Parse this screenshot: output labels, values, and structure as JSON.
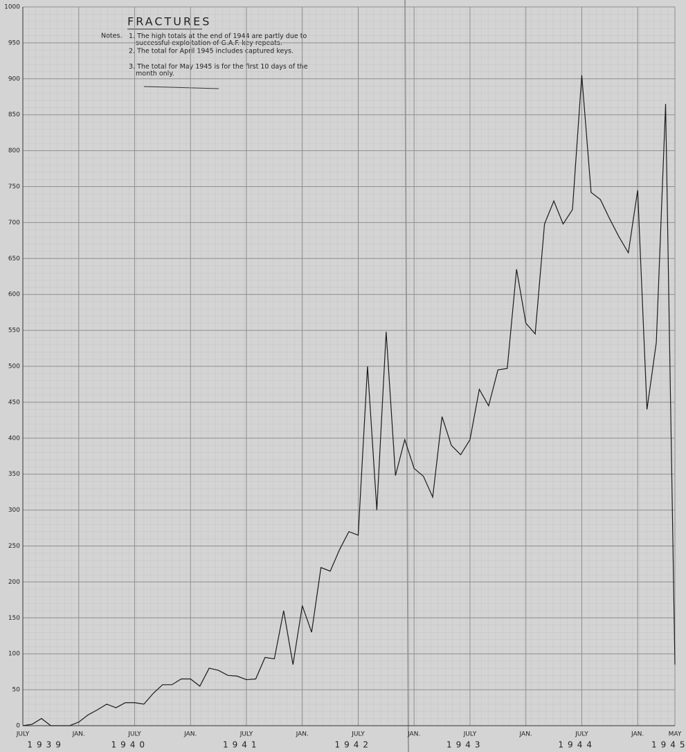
{
  "chart_data": {
    "type": "line",
    "title": "FRACTURES",
    "notes_heading": "Notes.",
    "notes": [
      "1. The high totals at the end of 1944 are partly due to successful exploitation of G.A.F. key repeats.",
      "2. The total for April 1945 includes captured keys.",
      "3. The total for May 1945 is for the first 10 days of the month only."
    ],
    "categories": [
      "JULY",
      null,
      null,
      null,
      null,
      null,
      "JAN.",
      null,
      null,
      null,
      null,
      null,
      "JULY",
      null,
      null,
      null,
      null,
      null,
      "JAN.",
      null,
      null,
      null,
      null,
      null,
      "JULY",
      null,
      null,
      null,
      null,
      null,
      "JAN.",
      null,
      null,
      null,
      null,
      null,
      "JULY",
      null,
      null,
      null,
      null,
      null,
      "JAN.",
      null,
      null,
      null,
      null,
      null,
      "JULY",
      null,
      null,
      null,
      null,
      null,
      "JAN.",
      null,
      null,
      null,
      null,
      null,
      "JULY",
      null,
      null,
      null,
      null,
      null,
      "JAN.",
      null,
      null,
      null,
      "MAY"
    ],
    "year_labels": [
      "1939",
      "1940",
      "1941",
      "1942",
      "1943",
      "1944",
      "1945"
    ],
    "series": [
      {
        "name": "Fractures",
        "color": "#1a1a1a",
        "values": [
          0,
          2,
          10,
          0,
          0,
          0,
          5,
          15,
          22,
          30,
          25,
          32,
          32,
          30,
          45,
          57,
          57,
          65,
          65,
          55,
          80,
          77,
          70,
          69,
          64,
          65,
          95,
          93,
          160,
          85,
          167,
          130,
          220,
          215,
          245,
          270,
          265,
          500,
          300,
          548,
          348,
          398,
          358,
          347,
          318,
          430,
          390,
          377,
          398,
          468,
          445,
          495,
          497,
          635,
          560,
          545,
          698,
          730,
          698,
          718,
          905,
          742,
          732,
          705,
          680,
          658,
          745,
          440,
          533,
          865,
          85
        ]
      }
    ],
    "ylim": [
      0,
      1000
    ],
    "yticks": [
      0,
      50,
      100,
      150,
      200,
      250,
      300,
      350,
      400,
      450,
      500,
      550,
      600,
      650,
      700,
      750,
      800,
      850,
      900,
      950,
      1000
    ],
    "grid": true
  }
}
